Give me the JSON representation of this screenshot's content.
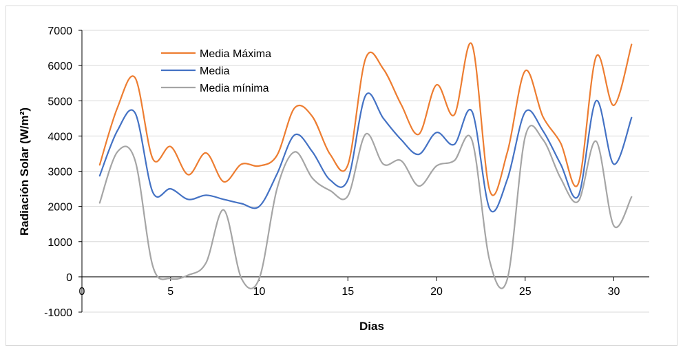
{
  "chart_data": {
    "type": "line",
    "title": "",
    "xlabel": "Dias",
    "ylabel": "Radiación  Solar (W/m²)",
    "xlim": [
      0,
      32
    ],
    "ylim": [
      -1000,
      7000
    ],
    "x_ticks": [
      0,
      5,
      10,
      15,
      20,
      25,
      30
    ],
    "y_ticks": [
      -1000,
      0,
      1000,
      2000,
      3000,
      4000,
      5000,
      6000,
      7000
    ],
    "grid": "horizontal",
    "legend_position": "top-left",
    "x": [
      1,
      2,
      3,
      4,
      5,
      6,
      7,
      8,
      9,
      10,
      11,
      12,
      13,
      14,
      15,
      16,
      17,
      18,
      19,
      20,
      21,
      22,
      23,
      24,
      25,
      26,
      27,
      28,
      29,
      30,
      31
    ],
    "series": [
      {
        "name": "Media Máxima",
        "color": "#ED7D31",
        "values": [
          3180,
          4800,
          5650,
          3350,
          3700,
          2900,
          3520,
          2700,
          3200,
          3150,
          3450,
          4800,
          4550,
          3480,
          3180,
          6200,
          5900,
          4900,
          4050,
          5450,
          4600,
          6600,
          2450,
          3550,
          5850,
          4550,
          3800,
          2650,
          6250,
          4870,
          6600
        ]
      },
      {
        "name": "Media",
        "color": "#4472C4",
        "values": [
          2870,
          4150,
          4650,
          2400,
          2500,
          2200,
          2320,
          2200,
          2080,
          2000,
          2920,
          4030,
          3550,
          2750,
          2760,
          5150,
          4500,
          3900,
          3480,
          4100,
          3760,
          4700,
          1930,
          2780,
          4680,
          4150,
          3200,
          2300,
          5000,
          3200,
          4520
        ]
      },
      {
        "name": "Media mínima",
        "color": "#A5A5A5",
        "values": [
          2100,
          3550,
          3300,
          300,
          -50,
          50,
          400,
          1900,
          -50,
          -50,
          2500,
          3550,
          2800,
          2450,
          2300,
          4050,
          3200,
          3300,
          2580,
          3150,
          3300,
          3880,
          450,
          -50,
          3980,
          3900,
          2800,
          2150,
          3850,
          1450,
          2270
        ]
      }
    ]
  }
}
